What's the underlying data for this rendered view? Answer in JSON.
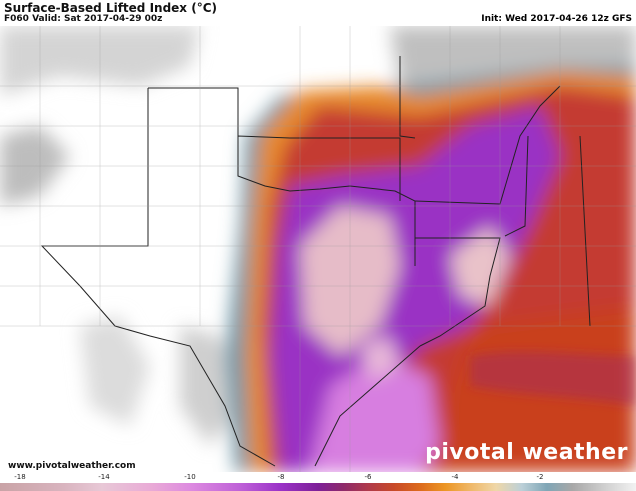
{
  "header": {
    "title": "Surface-Based Lifted Index (°C)",
    "valid": "F060 Valid: Sat 2017-04-29 00z",
    "init": "Init: Wed 2017-04-26 12z GFS"
  },
  "footer": {
    "website": "www.pivotalweather.com",
    "logo": "pivotal weather"
  },
  "colorbar": {
    "ticks": [
      -18,
      -14,
      -10,
      -8,
      -6,
      -4,
      -2
    ]
  }
}
